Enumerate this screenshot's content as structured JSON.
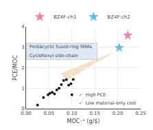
{
  "chart_data": {
    "type": "scatter",
    "xlabel": "MOC⁻¹ (g/$)",
    "ylabel": "PCE/MOC",
    "xlim": [
      0.0,
      0.25
    ],
    "ylim": [
      0.0,
      4.0
    ],
    "xticks": [
      {
        "value": 0.0,
        "label": "0.00"
      },
      0.05,
      {
        "value": 0.1,
        "label": "0.10"
      },
      0.15,
      {
        "value": 0.2,
        "label": "0.20"
      },
      0.25
    ],
    "yticks": [
      0,
      1,
      2,
      3,
      4
    ],
    "series": [
      {
        "color": "#1a1a1a",
        "marker": "circle",
        "x": [
          0.025,
          0.038,
          0.048,
          0.052,
          0.057,
          0.062,
          0.067,
          0.072,
          0.077,
          0.082,
          0.088,
          0.093,
          0.098,
          0.103,
          0.1
        ],
        "values": [
          0.18,
          0.55,
          0.68,
          0.75,
          0.8,
          0.72,
          0.92,
          1.0,
          1.18,
          1.38,
          1.42,
          1.15,
          1.22,
          1.43,
          0.68
        ]
      },
      {
        "name": "BZ4F-ch1",
        "color": "#f97cb0",
        "marker": "star",
        "x": [
          0.222
        ],
        "values": [
          3.58
        ]
      },
      {
        "name": "BZ4F-ch2",
        "color": "#5abef5",
        "marker": "star",
        "x": [
          0.203
        ],
        "values": [
          2.98
        ]
      }
    ],
    "annotations": [
      "Pentacyclic fused-ring SMAs",
      "Cyclohexyl side-chain",
      "✓  High PCE",
      "✓  Low material-only cost"
    ]
  }
}
